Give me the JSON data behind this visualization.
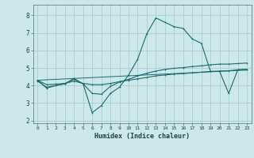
{
  "xlabel": "Humidex (Indice chaleur)",
  "bg_color": "#cce8eb",
  "grid_color": "#aacdd2",
  "line_color": "#1a6b6b",
  "xlim": [
    -0.5,
    23.5
  ],
  "ylim": [
    1.85,
    8.6
  ],
  "yticks": [
    2,
    3,
    4,
    5,
    6,
    7,
    8
  ],
  "xticks": [
    0,
    1,
    2,
    3,
    4,
    5,
    6,
    7,
    8,
    9,
    10,
    11,
    12,
    13,
    14,
    15,
    16,
    17,
    18,
    19,
    20,
    21,
    22,
    23
  ],
  "lines": [
    {
      "x": [
        0,
        1,
        2,
        3,
        4,
        5,
        6,
        7,
        8,
        9,
        10,
        11,
        12,
        13,
        14,
        15,
        16,
        17,
        18,
        19,
        20,
        21,
        22,
        23
      ],
      "y": [
        4.3,
        3.85,
        4.0,
        4.1,
        4.4,
        4.1,
        2.45,
        2.85,
        3.55,
        3.9,
        4.6,
        5.5,
        6.95,
        7.85,
        7.6,
        7.35,
        7.25,
        6.65,
        6.4,
        4.8,
        4.8,
        3.55,
        4.9,
        4.9
      ],
      "marker": true
    },
    {
      "x": [
        0,
        1,
        2,
        3,
        4,
        5,
        6,
        7,
        8,
        9,
        10,
        11,
        12,
        13,
        14,
        15,
        16,
        17,
        18,
        19,
        20,
        21,
        22,
        23
      ],
      "y": [
        4.25,
        3.9,
        4.0,
        4.1,
        4.35,
        4.1,
        3.55,
        3.5,
        3.95,
        4.2,
        4.35,
        4.55,
        4.7,
        4.82,
        4.92,
        4.98,
        5.02,
        5.08,
        5.12,
        5.18,
        5.22,
        5.22,
        5.25,
        5.28
      ],
      "marker": true
    },
    {
      "x": [
        0,
        1,
        2,
        3,
        4,
        5,
        6,
        7,
        8,
        9,
        10,
        11,
        12,
        13,
        14,
        15,
        16,
        17,
        18,
        19,
        20,
        21,
        22,
        23
      ],
      "y": [
        4.3,
        4.05,
        4.08,
        4.12,
        4.25,
        4.12,
        4.05,
        4.05,
        4.12,
        4.22,
        4.3,
        4.38,
        4.46,
        4.55,
        4.6,
        4.65,
        4.68,
        4.72,
        4.76,
        4.8,
        4.82,
        4.84,
        4.9,
        4.92
      ],
      "marker": true
    },
    {
      "x": [
        0,
        23
      ],
      "y": [
        4.3,
        4.88
      ],
      "marker": false
    }
  ]
}
